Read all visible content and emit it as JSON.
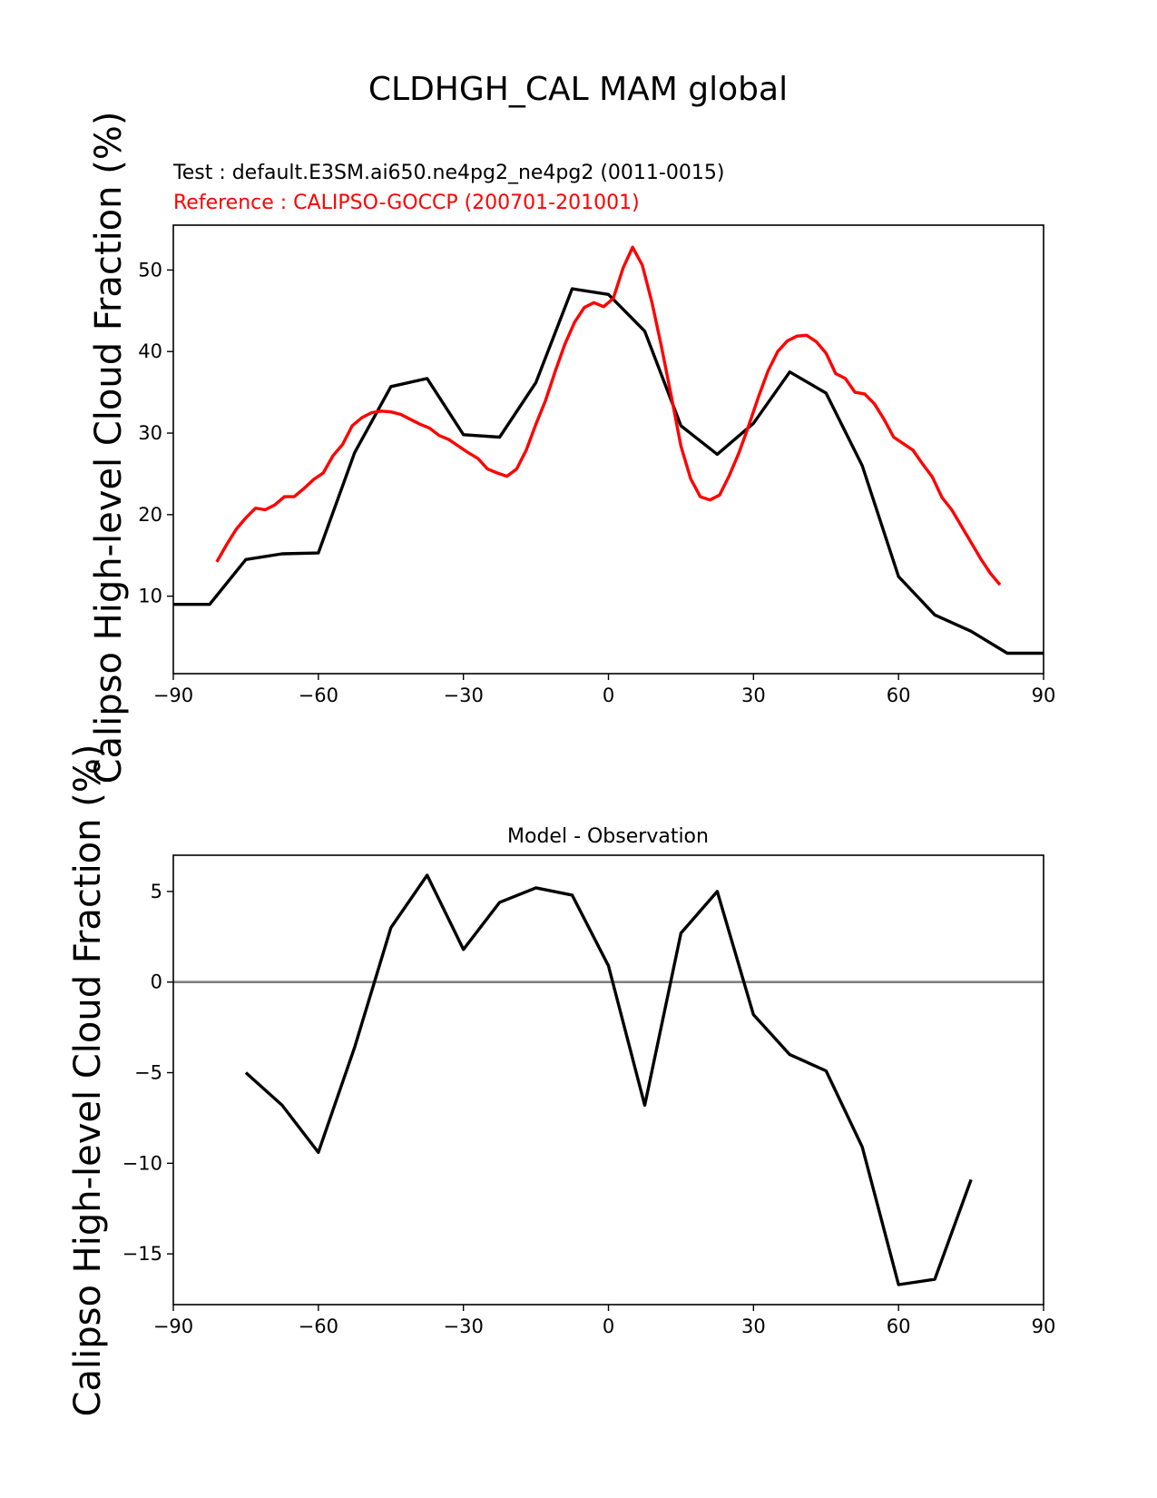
{
  "figure": {
    "suptitle": "CLDHGH_CAL MAM global"
  },
  "colors": {
    "test": "#000000",
    "reference": "#ff0000",
    "zero_line": "#808080"
  },
  "chart_data": [
    {
      "type": "line",
      "title": "",
      "ylabel": "Calipso High-level Cloud Fraction (%)",
      "xlabel": "",
      "test_label": "Test : default.E3SM.ai650.ne4pg2_ne4pg2 (0011-0015)",
      "reference_label": "Reference : CALIPSO-GOCCP (200701-201001)",
      "xlim": [
        -90,
        90
      ],
      "ylim": [
        0.5,
        55.5
      ],
      "xticks": [
        -90,
        -60,
        -30,
        0,
        30,
        60,
        90
      ],
      "xtick_labels": [
        "−90",
        "−60",
        "−30",
        "0",
        "30",
        "60",
        "90"
      ],
      "yticks": [
        10,
        20,
        30,
        40,
        50
      ],
      "ytick_labels": [
        "10",
        "20",
        "30",
        "40",
        "50"
      ],
      "grid": false,
      "series": [
        {
          "role": "test",
          "color": "#000000",
          "x": [
            -90,
            -82.5,
            -75,
            -67.5,
            -60,
            -52.5,
            -45,
            -37.5,
            -30,
            -22.5,
            -15,
            -7.5,
            0,
            7.5,
            15,
            22.5,
            30,
            37.5,
            45,
            52.5,
            60,
            67.5,
            75,
            82.5,
            90
          ],
          "y": [
            9.0,
            9.0,
            14.5,
            15.2,
            15.3,
            27.6,
            35.7,
            36.7,
            29.8,
            29.5,
            36.2,
            47.7,
            47.0,
            42.5,
            30.9,
            27.4,
            31.2,
            37.5,
            34.9,
            26.0,
            12.4,
            7.7,
            5.7,
            3.0,
            3.0
          ]
        },
        {
          "role": "reference",
          "color": "#ff0000",
          "x": [
            -81,
            -79,
            -77,
            -75,
            -73,
            -71,
            -69,
            -67,
            -65,
            -63,
            -61,
            -59,
            -57,
            -55,
            -53,
            -51,
            -49,
            -47,
            -45,
            -43,
            -41,
            -39,
            -37,
            -35,
            -33,
            -31,
            -29,
            -27,
            -25,
            -23,
            -21,
            -19,
            -17,
            -15,
            -13,
            -11,
            -9,
            -7,
            -5,
            -3,
            -1,
            1,
            3,
            5,
            7,
            9,
            11,
            13,
            15,
            17,
            19,
            21,
            23,
            25,
            27,
            29,
            31,
            33,
            35,
            37,
            39,
            41,
            43,
            45,
            47,
            49,
            51,
            53,
            55,
            57,
            59,
            61,
            63,
            65,
            67,
            69,
            71,
            73,
            75,
            77,
            79,
            81
          ],
          "y": [
            14.2,
            16.3,
            18.2,
            19.6,
            20.8,
            20.6,
            21.2,
            22.2,
            22.2,
            23.2,
            24.3,
            25.1,
            27.2,
            28.6,
            30.9,
            31.9,
            32.5,
            32.7,
            32.6,
            32.3,
            31.7,
            31.1,
            30.6,
            29.7,
            29.2,
            28.4,
            27.6,
            26.9,
            25.6,
            25.1,
            24.7,
            25.6,
            27.9,
            31.1,
            34.0,
            37.6,
            40.9,
            43.6,
            45.4,
            46.0,
            45.5,
            46.5,
            50.2,
            52.8,
            50.6,
            46.0,
            40.5,
            34.5,
            28.4,
            24.4,
            22.2,
            21.8,
            22.4,
            24.8,
            27.6,
            30.9,
            34.4,
            37.6,
            40.0,
            41.3,
            41.9,
            42.0,
            41.2,
            39.8,
            37.3,
            36.7,
            35.0,
            34.8,
            33.6,
            31.7,
            29.5,
            28.7,
            27.9,
            26.2,
            24.6,
            22.1,
            20.6,
            18.6,
            16.6,
            14.6,
            12.8,
            11.4
          ]
        }
      ]
    },
    {
      "type": "line",
      "title": "Model - Observation",
      "ylabel": "Calipso High-level Cloud Fraction (%)",
      "xlabel": "",
      "xlim": [
        -90,
        90
      ],
      "ylim": [
        -17.8,
        7.0
      ],
      "xticks": [
        -90,
        -60,
        -30,
        0,
        30,
        60,
        90
      ],
      "xtick_labels": [
        "−90",
        "−60",
        "−30",
        "0",
        "30",
        "60",
        "90"
      ],
      "yticks": [
        5,
        0,
        -5,
        -10,
        -15
      ],
      "ytick_labels": [
        "5",
        "0",
        "−5",
        "−10",
        "−15"
      ],
      "grid": false,
      "zero_line": 0,
      "series": [
        {
          "role": "difference",
          "color": "#000000",
          "x": [
            -75,
            -67.5,
            -60,
            -52.5,
            -45,
            -37.5,
            -30,
            -22.5,
            -15,
            -7.5,
            0,
            7.5,
            15,
            22.5,
            30,
            37.5,
            45,
            52.5,
            60,
            67.5,
            75
          ],
          "y": [
            -5.0,
            -6.8,
            -9.4,
            -3.6,
            3.0,
            5.9,
            1.8,
            4.4,
            5.2,
            4.8,
            0.9,
            -6.8,
            2.7,
            5.0,
            -1.8,
            -4.0,
            -4.9,
            -9.1,
            -16.7,
            -16.4,
            -10.9
          ]
        }
      ]
    }
  ]
}
